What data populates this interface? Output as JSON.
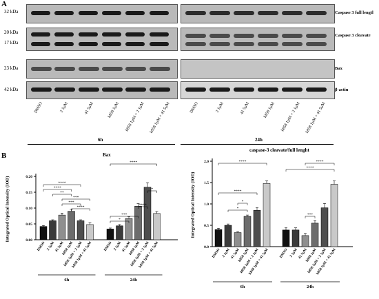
{
  "panelA": {
    "letter": "A",
    "mw_labels": [
      "32 kDa",
      "20 kDa",
      "17 kDa",
      "23 kDa",
      "42 kDa"
    ],
    "protein_labels": [
      "Caspase 3 full lengtl",
      "Caspase 3 cleavate",
      "Bax",
      "β-actin"
    ],
    "lanes_6h": [
      "DMSO",
      "2 1µM",
      "41 5µM",
      "k858 1µM",
      "k858 1µM + 2 1µM",
      "k858 1µM + 41 5µM"
    ],
    "lanes_24h": [
      "DMSO",
      "2 1µM",
      "41 5µM",
      "k858 1µM",
      "k858 1µM + 2 1µM",
      "k858 1µM + 41 5µM"
    ],
    "group_6h": "6h",
    "group_24h": "24h"
  },
  "panelB": {
    "letter": "B"
  },
  "chart_data": [
    {
      "type": "bar",
      "title": "Bax",
      "ylabel": "Integrated Optical Intensity (IOD)",
      "ylim": [
        0,
        0.2
      ],
      "yticks": [
        "0.00",
        "0.05",
        "0.10",
        "0.15",
        "0.20"
      ],
      "groups": [
        "6h",
        "24h"
      ],
      "categories": [
        "DMSO",
        "2 1µM",
        "41 5µM",
        "k858 1µM",
        "k858 1µM + 2 1µM",
        "k858 1µM + 41 5µM"
      ],
      "series": [
        {
          "values": [
            0.042,
            0.06,
            0.078,
            0.09,
            0.06,
            0.048
          ],
          "errors": [
            0.003,
            0.003,
            0.006,
            0.006,
            0.003,
            0.006
          ]
        },
        {
          "values": [
            0.034,
            0.044,
            0.067,
            0.106,
            0.166,
            0.083
          ],
          "errors": [
            0.003,
            0.004,
            0.006,
            0.008,
            0.014,
            0.006
          ]
        }
      ],
      "bar_colors": [
        "#111111",
        "#3a3a3a",
        "#8f8f8f",
        "#6c6c6c",
        "#4e4e4e",
        "#c9c9c9"
      ],
      "significance": [
        "****",
        "****",
        "**",
        "***",
        "***",
        "****",
        "*",
        "***",
        "****",
        "*",
        "****"
      ]
    },
    {
      "type": "bar",
      "title": "caspase-3 cleavate/full lenght",
      "ylabel": "Integrated Optical Intensity (IOD)",
      "ylim": [
        0,
        2.0
      ],
      "yticks": [
        "0.0",
        "0.5",
        "1.0",
        "1.5",
        "2.0"
      ],
      "groups": [
        "6h",
        "24h"
      ],
      "categories": [
        "DMSO",
        "2 1µM",
        "41 5µM",
        "k858 1µM",
        "k858 1µM + 2 1µM",
        "k858 1µM + 41 5µM"
      ],
      "series": [
        {
          "values": [
            0.4,
            0.5,
            0.33,
            0.71,
            0.85,
            1.48
          ],
          "errors": [
            0.03,
            0.03,
            0.02,
            0.03,
            0.06,
            0.06
          ]
        },
        {
          "values": [
            0.39,
            0.39,
            0.26,
            0.55,
            0.91,
            1.46
          ],
          "errors": [
            0.05,
            0.05,
            0.05,
            0.06,
            0.1,
            0.08
          ]
        }
      ],
      "bar_colors": [
        "#111111",
        "#3a3a3a",
        "#8f8f8f",
        "#6c6c6c",
        "#4e4e4e",
        "#c9c9c9"
      ],
      "significance": [
        "****",
        "****",
        "*",
        "*",
        "****",
        "***",
        "****"
      ]
    }
  ]
}
